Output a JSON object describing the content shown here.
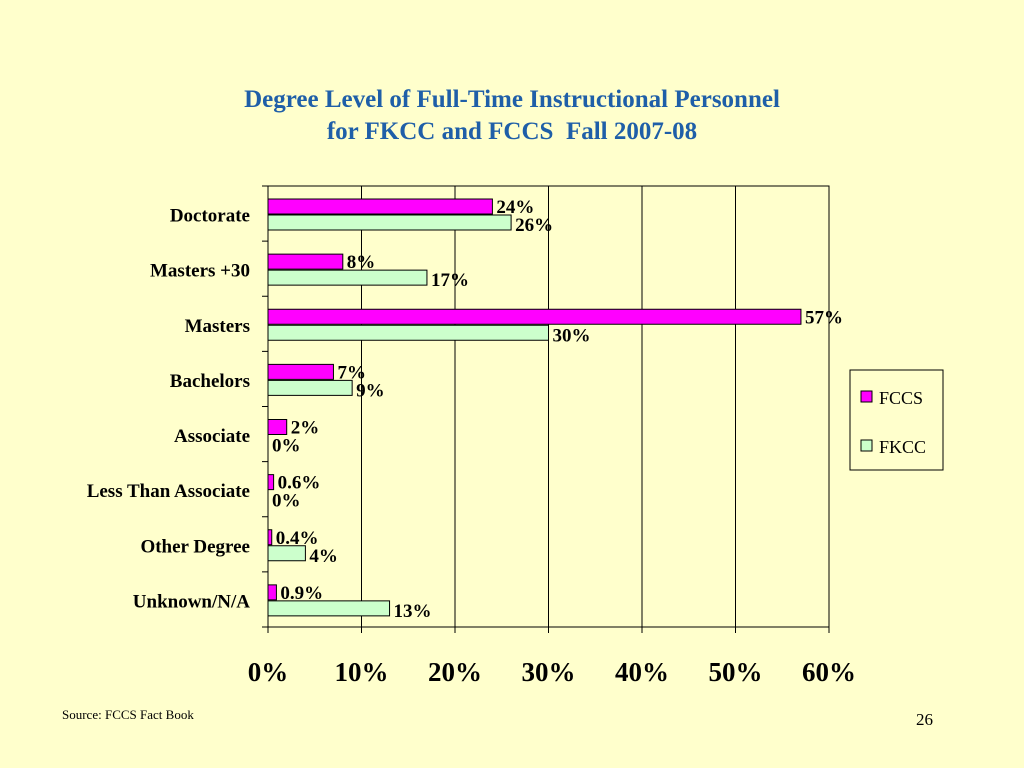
{
  "slide": {
    "title_line1": "Degree Level of Full-Time Instructional Personnel",
    "title_line2": "for FKCC and FCCS  Fall 2007-08",
    "source": "Source: FCCS Fact Book",
    "page_number": "26"
  },
  "colors": {
    "background": "#ffffcc",
    "title": "#1f5fa8",
    "fccs": "#ff00ff",
    "fkcc": "#ccffcc"
  },
  "chart_data": {
    "type": "bar",
    "orientation": "horizontal",
    "categories": [
      "Doctorate",
      "Masters +30",
      "Masters",
      "Bachelors",
      "Associate",
      "Less Than Associate",
      "Other Degree",
      "Unknown/N/A"
    ],
    "series": [
      {
        "name": "FCCS",
        "values": [
          24,
          8,
          57,
          7,
          2,
          0.6,
          0.4,
          0.9
        ],
        "labels": [
          "24%",
          "8%",
          "57%",
          "7%",
          "2%",
          "0.6%",
          "0.4%",
          "0.9%"
        ]
      },
      {
        "name": "FKCC",
        "values": [
          26,
          17,
          30,
          9,
          0,
          0,
          4,
          13
        ],
        "labels": [
          "26%",
          "17%",
          "30%",
          "9%",
          "0%",
          "0%",
          "4%",
          "13%"
        ]
      }
    ],
    "xlim": [
      0,
      60
    ],
    "xticks": [
      "0%",
      "10%",
      "20%",
      "30%",
      "40%",
      "50%",
      "60%"
    ],
    "grid": "vertical",
    "legend": "right"
  }
}
